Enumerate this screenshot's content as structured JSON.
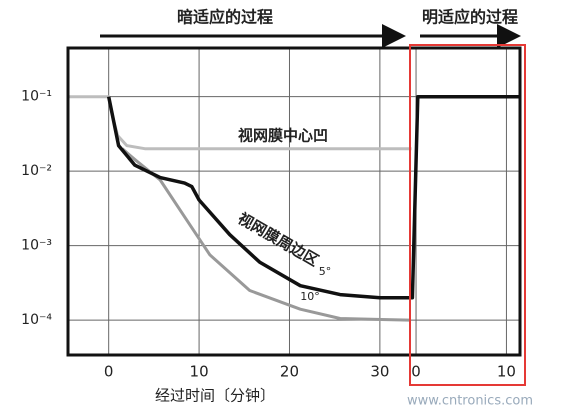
{
  "chart_data": {
    "type": "line",
    "phases": [
      "暗适应的过程",
      "明适应的过程"
    ],
    "xlabel": "经过时间〔分钟〕",
    "annotation": "视网膜周边区",
    "watermark": "www.cntronics.com",
    "log_y": true,
    "grid": true,
    "xlim": [
      -4.5,
      45.5
    ],
    "xticks": [
      0,
      10,
      20,
      30,
      {
        "value": 34,
        "label": "0"
      },
      {
        "value": 44,
        "label": "10"
      }
    ],
    "ylim": [
      0.45,
      3.4e-05
    ],
    "yticks": [
      {
        "value": 0.1,
        "label": "10⁻¹"
      },
      {
        "value": 0.01,
        "label": "10⁻²"
      },
      {
        "value": 0.001,
        "label": "10⁻³"
      },
      {
        "value": 0.0001,
        "label": "10⁻⁴"
      }
    ],
    "series": [
      {
        "name": "视网膜中心凹",
        "color": "#bdbdbd",
        "x": [
          -4.5,
          0,
          0.5,
          1,
          2,
          4,
          33.5
        ],
        "values": [
          0.1,
          0.1,
          0.05,
          0.03,
          0.022,
          0.02,
          0.02
        ]
      },
      {
        "name": "10°",
        "color": "#999999",
        "x": [
          1.5,
          3,
          5.7,
          7.9,
          11.2,
          15.6,
          21.2,
          25.6,
          33.3
        ],
        "values": [
          0.02,
          0.014,
          0.0076,
          0.003,
          0.00075,
          0.00025,
          0.00014,
          0.000105,
          0.0001
        ]
      },
      {
        "name": "5°",
        "color": "#111111",
        "x": [
          0,
          1.1,
          2.9,
          5.7,
          8.4,
          9.2,
          10,
          13.4,
          16.7,
          21.2,
          25.6,
          30,
          33.6,
          34.2,
          45.5
        ],
        "values": [
          0.1,
          0.022,
          0.012,
          0.0082,
          0.0069,
          0.0062,
          0.0041,
          0.0014,
          0.0006,
          0.00029,
          0.00022,
          0.0002,
          0.0002,
          0.1,
          0.1
        ]
      }
    ]
  }
}
